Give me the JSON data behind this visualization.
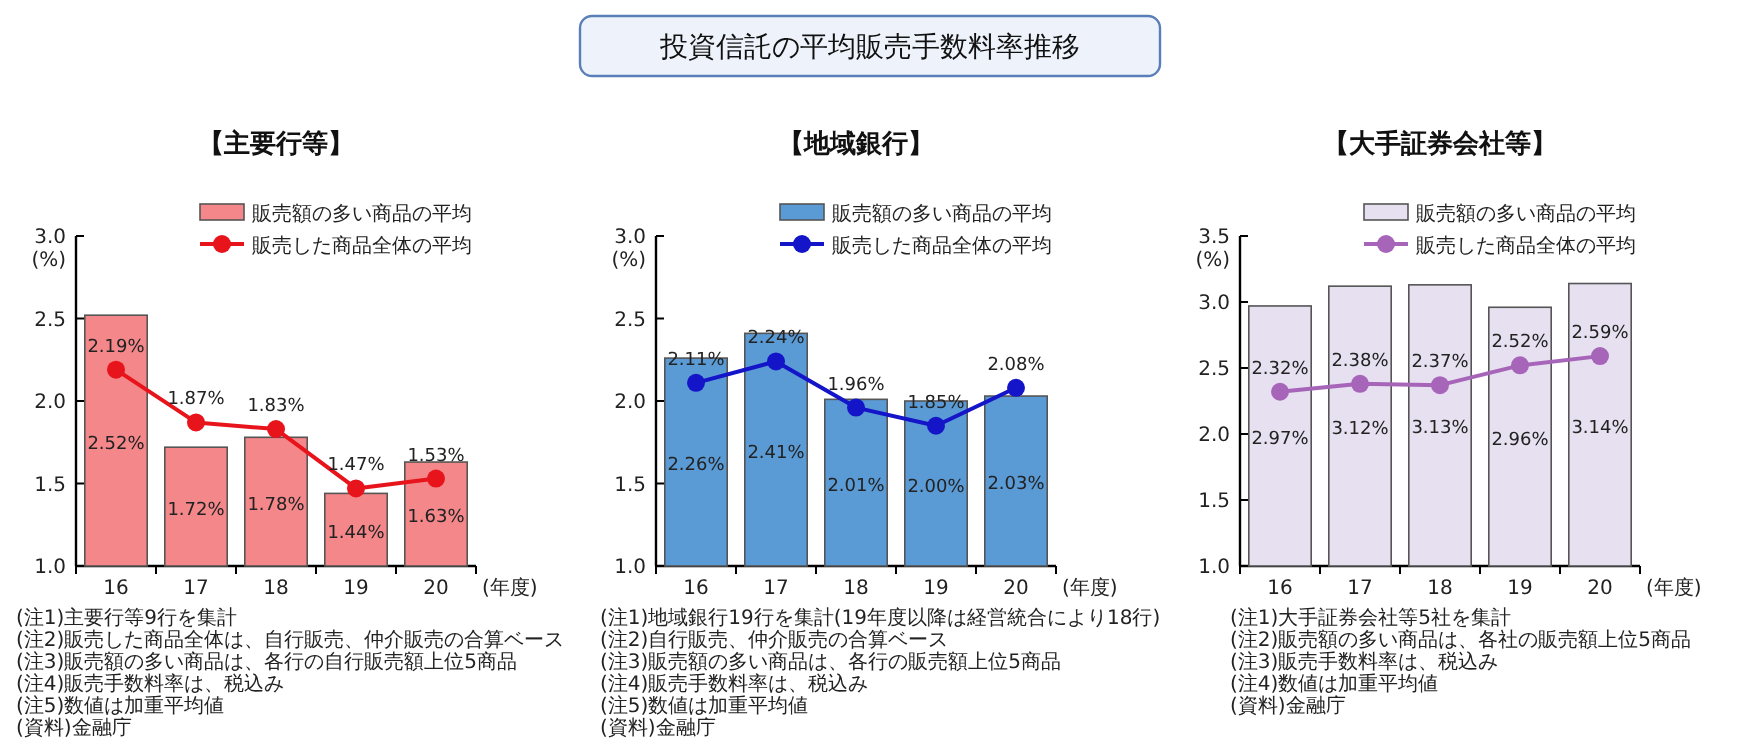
{
  "chart_data": [
    {
      "type": "other",
      "title": "投資信託の平均販売手数料率推移"
    },
    {
      "type": "bar",
      "title": "【主要行等】",
      "xlabel": "(年度)",
      "ylabel": "(%)",
      "categories": [
        "16",
        "17",
        "18",
        "19",
        "20"
      ],
      "ylim": [
        1,
        3
      ],
      "yticks": [
        {
          "value": 1,
          "label": "1.0"
        },
        {
          "value": 1.5,
          "label": "1.5"
        },
        {
          "value": 2,
          "label": "2.0"
        },
        {
          "value": 2.5,
          "label": "2.5"
        },
        {
          "value": 3,
          "label": "3.0"
        }
      ],
      "legend": "top right",
      "marker": "circle",
      "line_style": "solid",
      "series": [
        {
          "name": "販売額の多い商品の平均",
          "type": "bar",
          "color": "#f4878a",
          "values": [
            2.52,
            1.72,
            1.78,
            1.44,
            1.63
          ],
          "value_labels": [
            "2.52%",
            "1.72%",
            "1.78%",
            "1.44%",
            "1.63%"
          ]
        },
        {
          "name": "販売した商品全体の平均",
          "type": "line",
          "color": "#e8141c",
          "values": [
            2.19,
            1.87,
            1.83,
            1.47,
            1.53
          ],
          "value_labels": [
            "2.19%",
            "1.87%",
            "1.83%",
            "1.47%",
            "1.53%"
          ]
        }
      ],
      "annotations": [
        "(注1)主要行等9行を集計",
        "(注2)販売した商品全体は、自行販売、仲介販売の合算ベース",
        "(注3)販売額の多い商品は、各行の自行販売額上位5商品",
        "(注4)販売手数料率は、税込み",
        "(注5)数値は加重平均値",
        "(資料)金融庁"
      ]
    },
    {
      "type": "bar",
      "title": "【地域銀行】",
      "xlabel": "(年度)",
      "ylabel": "(%)",
      "categories": [
        "16",
        "17",
        "18",
        "19",
        "20"
      ],
      "ylim": [
        1,
        3
      ],
      "yticks": [
        {
          "value": 1,
          "label": "1.0"
        },
        {
          "value": 1.5,
          "label": "1.5"
        },
        {
          "value": 2,
          "label": "2.0"
        },
        {
          "value": 2.5,
          "label": "2.5"
        },
        {
          "value": 3,
          "label": "3.0"
        }
      ],
      "legend": "top right",
      "marker": "circle",
      "line_style": "solid",
      "series": [
        {
          "name": "販売額の多い商品の平均",
          "type": "bar",
          "color": "#5b9bd5",
          "values": [
            2.26,
            2.41,
            2.01,
            2.0,
            2.03
          ],
          "value_labels": [
            "2.26%",
            "2.41%",
            "2.01%",
            "2.00%",
            "2.03%"
          ]
        },
        {
          "name": "販売した商品全体の平均",
          "type": "line",
          "color": "#1414c8",
          "values": [
            2.11,
            2.24,
            1.96,
            1.85,
            2.08
          ],
          "value_labels": [
            "2.11%",
            "2.24%",
            "1.96%",
            "1.85%",
            "2.08%"
          ]
        }
      ],
      "annotations": [
        "(注1)地域銀行19行を集計(19年度以降は経営統合により18行)",
        "(注2)自行販売、仲介販売の合算ベース",
        "(注3)販売額の多い商品は、各行の販売額上位5商品",
        "(注4)販売手数料率は、税込み",
        "(注5)数値は加重平均値",
        "(資料)金融庁"
      ]
    },
    {
      "type": "bar",
      "title": "【大手証券会社等】",
      "xlabel": "(年度)",
      "ylabel": "(%)",
      "categories": [
        "16",
        "17",
        "18",
        "19",
        "20"
      ],
      "ylim": [
        1,
        3.5
      ],
      "yticks": [
        {
          "value": 1,
          "label": "1.0"
        },
        {
          "value": 1.5,
          "label": "1.5"
        },
        {
          "value": 2,
          "label": "2.0"
        },
        {
          "value": 2.5,
          "label": "2.5"
        },
        {
          "value": 3,
          "label": "3.0"
        },
        {
          "value": 3.5,
          "label": "3.5"
        }
      ],
      "legend": "top right",
      "marker": "circle",
      "line_style": "solid",
      "series": [
        {
          "name": "販売額の多い商品の平均",
          "type": "bar",
          "color": "#e6e0f0",
          "values": [
            2.97,
            3.12,
            3.13,
            2.96,
            3.14
          ],
          "value_labels": [
            "2.97%",
            "3.12%",
            "3.13%",
            "2.96%",
            "3.14%"
          ]
        },
        {
          "name": "販売した商品全体の平均",
          "type": "line",
          "color": "#a765b9",
          "values": [
            2.32,
            2.38,
            2.37,
            2.52,
            2.59
          ],
          "value_labels": [
            "2.32%",
            "2.38%",
            "2.37%",
            "2.52%",
            "2.59%"
          ]
        }
      ],
      "annotations": [
        "(注1)大手証券会社等5社を集計",
        "(注2)販売額の多い商品は、各社の販売額上位5商品",
        "(注3)販売手数料率は、税込み",
        "(注4)数値は加重平均値",
        "(資料)金融庁"
      ]
    }
  ]
}
